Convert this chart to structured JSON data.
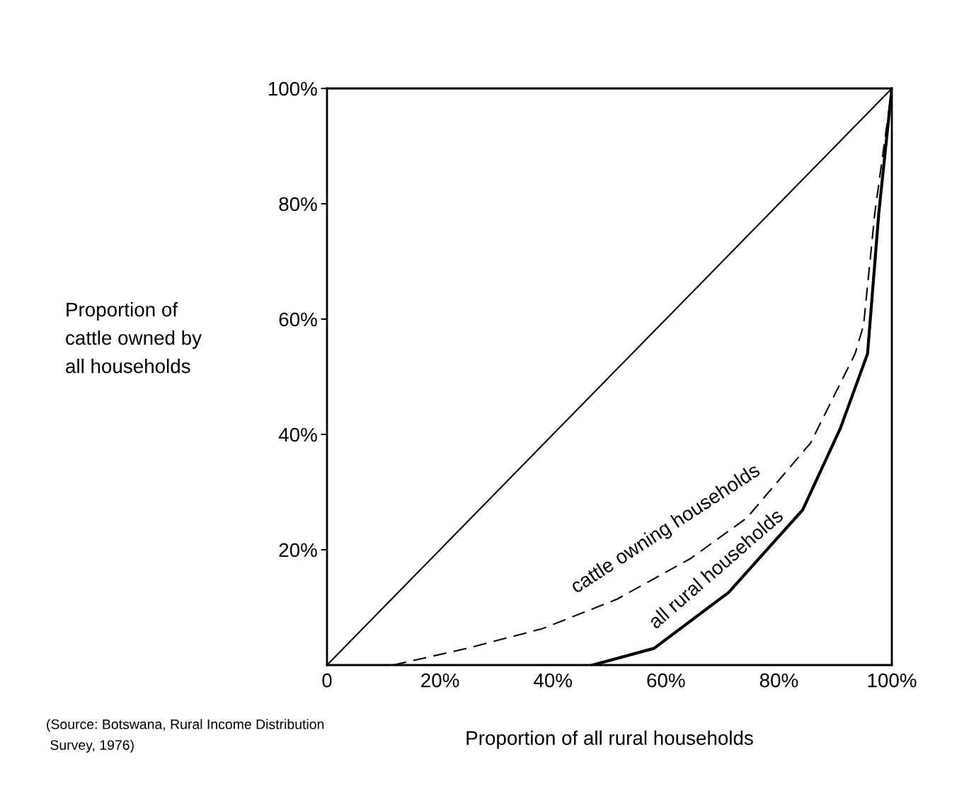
{
  "chart_data": {
    "type": "line",
    "xlabel": "Proportion of all rural households",
    "ylabel": "Proportion of\ncattle owned by\nall households",
    "xlim": [
      0,
      100
    ],
    "ylim": [
      0,
      100
    ],
    "xticks": [
      {
        "value": 0,
        "label": "0"
      },
      {
        "value": 20,
        "label": "20%"
      },
      {
        "value": 40,
        "label": "40%"
      },
      {
        "value": 60,
        "label": "60%"
      },
      {
        "value": 80,
        "label": "80%"
      },
      {
        "value": 100,
        "label": "100%"
      }
    ],
    "yticks": [
      {
        "value": 20,
        "label": "20%"
      },
      {
        "value": 40,
        "label": "40%"
      },
      {
        "value": 60,
        "label": "60%"
      },
      {
        "value": 80,
        "label": "80%"
      },
      {
        "value": 100,
        "label": "100%"
      }
    ],
    "grid": false,
    "legend": false,
    "marker": "none",
    "series": [
      {
        "color": "#000000",
        "line_style": "solid",
        "x": [
          0,
          100
        ],
        "values": [
          0,
          100
        ]
      },
      {
        "name": "cattle owning households",
        "color": "#000000",
        "line_style": "dashed",
        "x": [
          11.7,
          24.8,
          38.1,
          51.3,
          64.4,
          74.3,
          85.6,
          93.5,
          95,
          97,
          100
        ],
        "values": [
          0,
          2.9,
          6.3,
          11.4,
          18.5,
          25.5,
          38.5,
          54,
          59,
          78.5,
          100
        ]
      },
      {
        "name": "all rural households",
        "color": "#000000",
        "line_style": "solid",
        "x": [
          47,
          57.9,
          71.1,
          84.2,
          90.9,
          95.7,
          97.7,
          100
        ],
        "values": [
          0,
          2.9,
          12.6,
          26.9,
          41.1,
          54,
          78.5,
          100
        ]
      }
    ],
    "annotations": [
      "(Source: Botswana, Rural Income Distribution\n Survey, 1976)"
    ]
  }
}
